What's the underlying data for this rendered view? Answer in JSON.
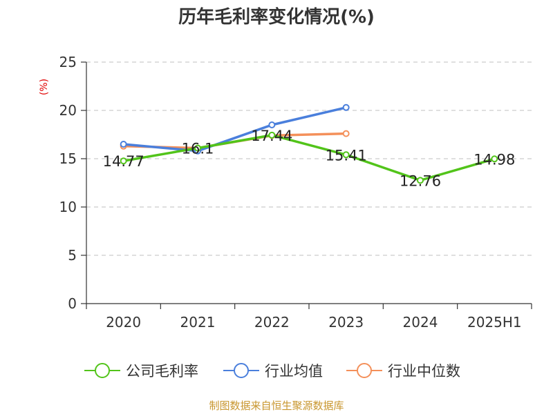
{
  "chart_data": {
    "type": "line",
    "title": "历年毛利率变化情况(%)",
    "ylabel": "(%)",
    "ylim": [
      0,
      25
    ],
    "yticks": [
      "0",
      "5",
      "10",
      "15",
      "20",
      "25"
    ],
    "categories": [
      "2020",
      "2021",
      "2022",
      "2023",
      "2024",
      "2025H1"
    ],
    "grid": true,
    "legend_position": "bottom",
    "series": [
      {
        "name": "公司毛利率",
        "color": "#52c41a",
        "values": [
          14.77,
          16.1,
          17.44,
          15.41,
          12.76,
          14.98
        ],
        "labels": [
          "14.77",
          "16.1",
          "17.44",
          "15.41",
          "12.76",
          "14.98"
        ]
      },
      {
        "name": "行业均值",
        "color": "#4a7fdc",
        "values": [
          16.5,
          15.8,
          18.5,
          20.3,
          null,
          null
        ]
      },
      {
        "name": "行业中位数",
        "color": "#f4905a",
        "values": [
          16.3,
          16.1,
          17.4,
          17.6,
          null,
          null
        ]
      }
    ]
  },
  "footer": {
    "source": "制图数据来自恒生聚源数据库"
  }
}
